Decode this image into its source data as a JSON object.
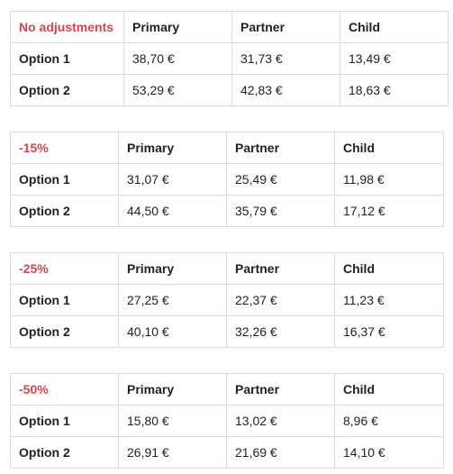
{
  "tables": [
    {
      "label": "No adjustments",
      "columns": [
        "Primary",
        "Partner",
        "Child"
      ],
      "rows": [
        {
          "label": "Option 1",
          "values": [
            "38,70 €",
            "31,73 €",
            "13,49 €"
          ]
        },
        {
          "label": "Option 2",
          "values": [
            "53,29 €",
            "42,83 €",
            "18,63 €"
          ]
        }
      ]
    },
    {
      "label": "-15%",
      "columns": [
        "Primary",
        "Partner",
        "Child"
      ],
      "rows": [
        {
          "label": "Option 1",
          "values": [
            "31,07 €",
            "25,49 €",
            "11,98 €"
          ]
        },
        {
          "label": "Option 2",
          "values": [
            "44,50 €",
            "35,79 €",
            "17,12 €"
          ]
        }
      ]
    },
    {
      "label": "-25%",
      "columns": [
        "Primary",
        "Partner",
        "Child"
      ],
      "rows": [
        {
          "label": "Option 1",
          "values": [
            "27,25 €",
            "22,37 €",
            "11,23 €"
          ]
        },
        {
          "label": "Option 2",
          "values": [
            "40,10 €",
            "32,26 €",
            "16,37 €"
          ]
        }
      ]
    },
    {
      "label": "-50%",
      "columns": [
        "Primary",
        "Partner",
        "Child"
      ],
      "rows": [
        {
          "label": "Option 1",
          "values": [
            "15,80 €",
            "13,02 €",
            "8,96 €"
          ]
        },
        {
          "label": "Option 2",
          "values": [
            "26,91 €",
            "21,69 €",
            "14,10 €"
          ]
        }
      ]
    }
  ],
  "colors": {
    "header_label": "#d64550",
    "border": "#dcdcdc",
    "text": "#222222"
  }
}
